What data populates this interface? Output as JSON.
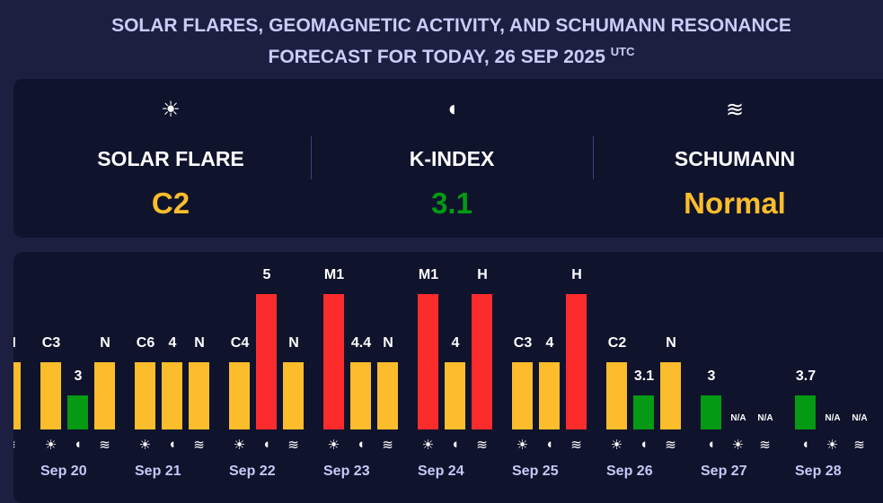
{
  "header": {
    "title_line1": "SOLAR FLARES, GEOMAGNETIC ACTIVITY, AND SCHUMANN RESONANCE",
    "title_line2": "FORECAST FOR TODAY, 26 SEP 2025",
    "title_sup": "UTC"
  },
  "summary": [
    {
      "icon": "sun-icon",
      "glyph": "☀",
      "label": "SOLAR FLARE",
      "value": "C2",
      "color": "#fbbd2b"
    },
    {
      "icon": "magnet-icon",
      "glyph": "◖",
      "label": "K-INDEX",
      "value": "3.1",
      "color": "#049a13"
    },
    {
      "icon": "waves-icon",
      "glyph": "≋",
      "label": "SCHUMANN",
      "value": "Normal",
      "color": "#fbbd2b"
    }
  ],
  "colors": {
    "yellow": "#fbbd2b",
    "green": "#049a13",
    "red": "#fd2c2c"
  },
  "days": [
    {
      "date": "",
      "bars": [
        {
          "kind": "schumann",
          "label": "N",
          "level": 2,
          "color": "yellow"
        }
      ]
    },
    {
      "date": "Sep 20",
      "bars": [
        {
          "kind": "flare",
          "label": "C3",
          "level": 2,
          "color": "yellow"
        },
        {
          "kind": "kindex",
          "label": "3",
          "level": 1,
          "color": "green"
        },
        {
          "kind": "schumann",
          "label": "N",
          "level": 2,
          "color": "yellow"
        }
      ]
    },
    {
      "date": "Sep 21",
      "bars": [
        {
          "kind": "flare",
          "label": "C6",
          "level": 2,
          "color": "yellow"
        },
        {
          "kind": "kindex",
          "label": "4",
          "level": 2,
          "color": "yellow"
        },
        {
          "kind": "schumann",
          "label": "N",
          "level": 2,
          "color": "yellow"
        }
      ]
    },
    {
      "date": "Sep 22",
      "bars": [
        {
          "kind": "flare",
          "label": "C4",
          "level": 2,
          "color": "yellow"
        },
        {
          "kind": "kindex",
          "label": "5",
          "level": 4,
          "color": "red"
        },
        {
          "kind": "schumann",
          "label": "N",
          "level": 2,
          "color": "yellow"
        }
      ]
    },
    {
      "date": "Sep 23",
      "bars": [
        {
          "kind": "flare",
          "label": "M1",
          "level": 4,
          "color": "red"
        },
        {
          "kind": "kindex",
          "label": "4.4",
          "level": 2,
          "color": "yellow"
        },
        {
          "kind": "schumann",
          "label": "N",
          "level": 2,
          "color": "yellow"
        }
      ]
    },
    {
      "date": "Sep 24",
      "bars": [
        {
          "kind": "flare",
          "label": "M1",
          "level": 4,
          "color": "red"
        },
        {
          "kind": "kindex",
          "label": "4",
          "level": 2,
          "color": "yellow"
        },
        {
          "kind": "schumann",
          "label": "H",
          "level": 4,
          "color": "red"
        }
      ]
    },
    {
      "date": "Sep 25",
      "bars": [
        {
          "kind": "flare",
          "label": "C3",
          "level": 2,
          "color": "yellow"
        },
        {
          "kind": "kindex",
          "label": "4",
          "level": 2,
          "color": "yellow"
        },
        {
          "kind": "schumann",
          "label": "H",
          "level": 4,
          "color": "red"
        }
      ]
    },
    {
      "date": "Sep 26",
      "bars": [
        {
          "kind": "flare",
          "label": "C2",
          "level": 2,
          "color": "yellow"
        },
        {
          "kind": "kindex",
          "label": "3.1",
          "level": 1,
          "color": "green"
        },
        {
          "kind": "schumann",
          "label": "N",
          "level": 2,
          "color": "yellow"
        }
      ]
    },
    {
      "date": "Sep 27",
      "bars": [
        {
          "kind": "kindex",
          "label": "3",
          "level": 1,
          "color": "green"
        },
        {
          "kind": "flare",
          "label": "N/A",
          "level": 0,
          "color": "yellow"
        },
        {
          "kind": "schumann",
          "label": "N/A",
          "level": 0,
          "color": "yellow"
        }
      ]
    },
    {
      "date": "Sep 28",
      "bars": [
        {
          "kind": "kindex",
          "label": "3.7",
          "level": 1,
          "color": "green"
        },
        {
          "kind": "flare",
          "label": "N/A",
          "level": 0,
          "color": "yellow"
        },
        {
          "kind": "schumann",
          "label": "N/A",
          "level": 0,
          "color": "yellow"
        }
      ]
    }
  ]
}
